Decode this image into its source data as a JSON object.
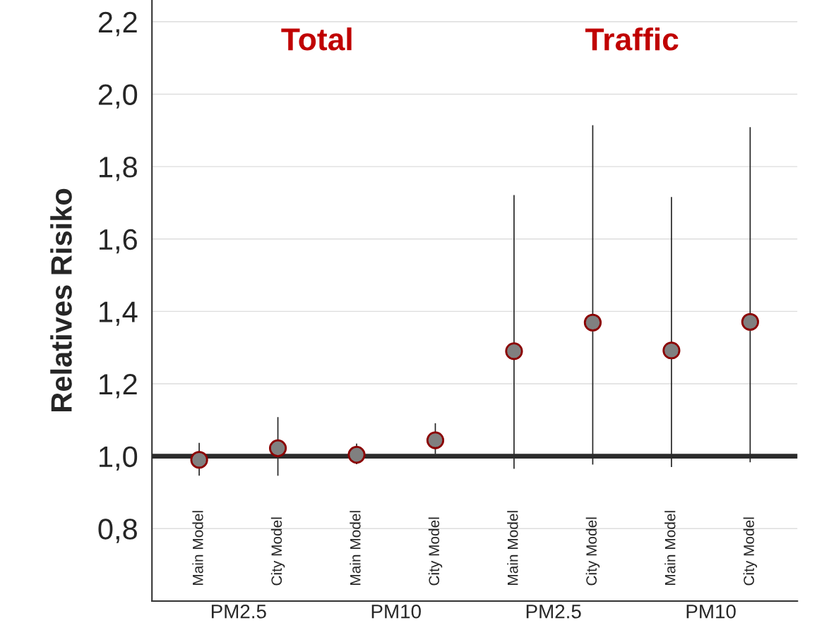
{
  "chart_data": {
    "type": "scatter",
    "ylabel": "Relatives Risiko",
    "categories": [
      "Main Model",
      "City Model",
      "Main Model",
      "City Model",
      "Main Model",
      "City Model",
      "Main Model",
      "City Model"
    ],
    "series": [
      {
        "color": "#808080",
        "values": [
          0.99,
          1.022,
          1.004,
          1.044,
          1.29,
          1.369,
          1.292,
          1.371
        ],
        "errors": [
          [
            0.946,
            1.037
          ],
          [
            0.946,
            1.108
          ],
          [
            0.978,
            1.035
          ],
          [
            1.006,
            1.091
          ],
          [
            0.965,
            1.721
          ],
          [
            0.977,
            1.914
          ],
          [
            0.97,
            1.716
          ],
          [
            0.983,
            1.909
          ]
        ]
      }
    ],
    "marker": "circle",
    "ylim": [
      0.6,
      2.26
    ],
    "yticks": [
      {
        "value": 0.8,
        "label": "0,8"
      },
      {
        "value": 1.0,
        "label": "1,0"
      },
      {
        "value": 1.2,
        "label": "1,2"
      },
      {
        "value": 1.4,
        "label": "1,4"
      },
      {
        "value": 1.6,
        "label": "1,6"
      },
      {
        "value": 1.8,
        "label": "1,8"
      },
      {
        "value": 2.0,
        "label": "2,0"
      },
      {
        "value": 2.2,
        "label": "2,2"
      }
    ],
    "grid": "y",
    "ref_lines": [
      {
        "axis": "y",
        "value": 1.0,
        "color": "#2b2b2b"
      }
    ],
    "annotations": [
      "Total",
      "Traffic",
      "PM2.5",
      "PM10",
      "PM2.5",
      "PM10"
    ]
  }
}
